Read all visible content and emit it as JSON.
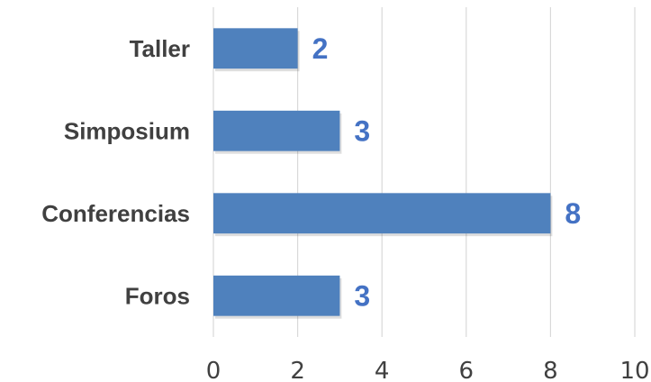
{
  "chart_data": {
    "type": "bar",
    "orientation": "horizontal",
    "categories": [
      "Taller",
      "Simposium",
      "Conferencias",
      "Foros"
    ],
    "values": [
      2,
      3,
      8,
      3
    ],
    "data_labels": [
      "2",
      "3",
      "8",
      "3"
    ],
    "xlim": [
      0,
      10
    ],
    "x_ticks": [
      "0",
      "2",
      "4",
      "6",
      "8",
      "10"
    ],
    "grid": "vertical",
    "legend": "none",
    "colors": {
      "bar": "#4f81bd",
      "data_label": "#4472c4",
      "axis_text": "#404040",
      "grid": "#d9d9d9"
    }
  }
}
